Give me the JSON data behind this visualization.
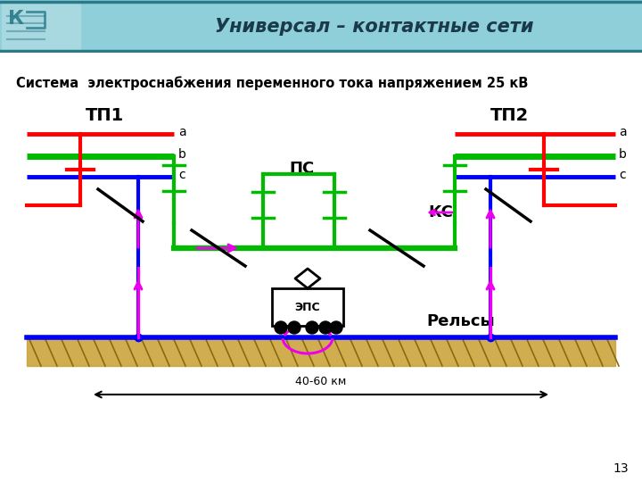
{
  "title": "Универсал – контактные сети",
  "subtitle": "Система  электроснабжения переменного тока напряжением 25 кВ",
  "header_bg_light": "#8ecfda",
  "header_bg_dark": "#3a9aaa",
  "header_border": "#2a7a8a",
  "body_bg": "#ffffff",
  "red_color": "#ff0000",
  "green_color": "#00bb00",
  "blue_color": "#0000ff",
  "magenta_color": "#ee00ee",
  "black_color": "#000000",
  "ground_color": "#c8a030",
  "ground_hatch": "#8B6914",
  "page_num": "13",
  "tp1_label": "ТП1",
  "tp2_label": "ТП2",
  "ps_label": "ПС",
  "ks_label": "КС",
  "relssy_label": "Рельсы",
  "eps_label": "ЭПС",
  "dim_label": "40-60 км"
}
